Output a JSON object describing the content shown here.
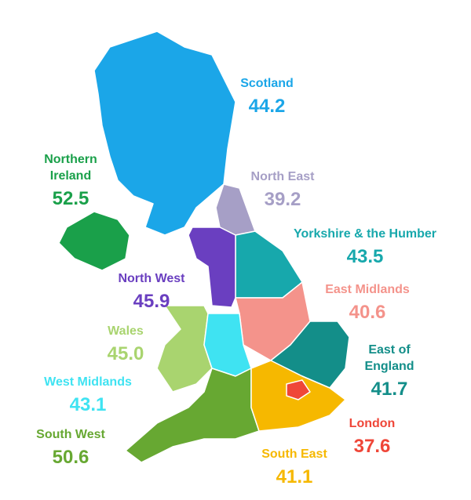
{
  "regions": [
    {
      "name": "Scotland",
      "value": 44.2,
      "color": "#1ba6e8"
    },
    {
      "name": "Northern Ireland",
      "value": 52.5,
      "color": "#1aa04a"
    },
    {
      "name": "North East",
      "value": 39.2,
      "color": "#a69fc6"
    },
    {
      "name": "Yorkshire & the Humber",
      "value": 43.5,
      "color": "#17a8ac"
    },
    {
      "name": "North West",
      "value": 45.9,
      "color": "#6a3fc0"
    },
    {
      "name": "East Midlands",
      "value": 40.6,
      "color": "#f4938b"
    },
    {
      "name": "Wales",
      "value": 45.0,
      "value_label": "45.0",
      "color": "#a9d46f"
    },
    {
      "name": "East of England",
      "value": 41.7,
      "color": "#138e89"
    },
    {
      "name": "West Midlands",
      "value": 43.1,
      "color": "#3fe3f2"
    },
    {
      "name": "London",
      "value": 37.6,
      "color": "#ef4638"
    },
    {
      "name": "South West",
      "value": 50.6,
      "color": "#67a832"
    },
    {
      "name": "South East",
      "value": 41.1,
      "color": "#f6b800"
    }
  ]
}
